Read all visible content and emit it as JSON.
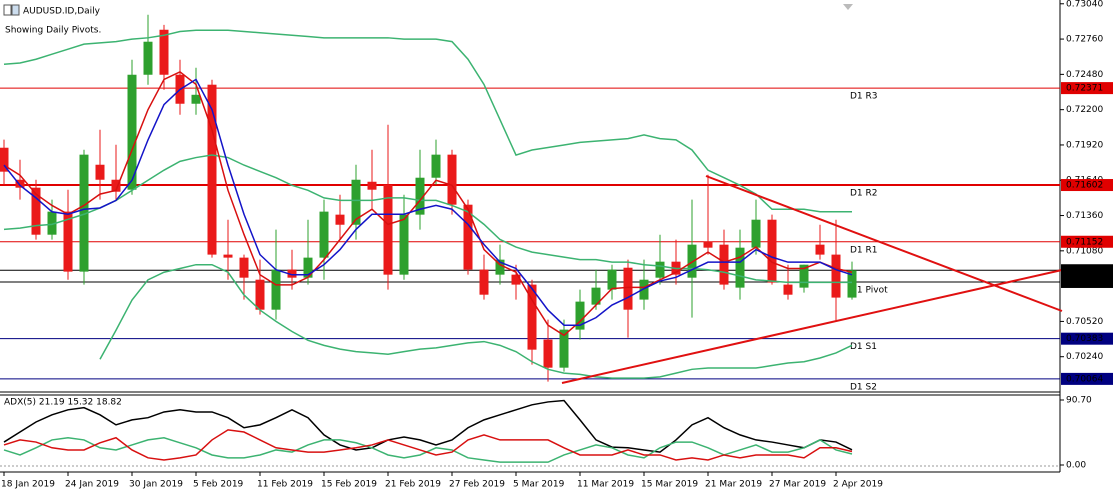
{
  "chart_data": [
    {
      "type": "candlestick",
      "title": "AUDUSD.ID,Daily",
      "subtitle": "Showing Daily Pivots.",
      "categories": [
        "18 Jan 2019",
        null,
        null,
        null,
        "24 Jan 2019",
        null,
        null,
        null,
        "30 Jan 2019",
        null,
        null,
        null,
        "5 Feb 2019",
        null,
        null,
        null,
        "11 Feb 2019",
        null,
        null,
        null,
        "15 Feb 2019",
        null,
        null,
        null,
        "21 Feb 2019",
        null,
        null,
        null,
        "27 Feb 2019",
        null,
        null,
        null,
        "5 Mar 2019",
        null,
        null,
        null,
        "11 Mar 2019",
        null,
        null,
        null,
        "15 Mar 2019",
        null,
        null,
        null,
        "21 Mar 2019",
        null,
        null,
        null,
        "27 Mar 2019",
        null,
        null,
        null,
        "2 Apr 2019",
        null
      ],
      "open": [
        0.71898,
        0.71644,
        0.71581,
        0.71208,
        0.71391,
        0.70915,
        0.71763,
        0.71644,
        0.71565,
        0.72477,
        0.72834,
        0.72477,
        0.72247,
        0.72398,
        0.7105,
        0.71026,
        0.70851,
        0.70613,
        0.70931,
        0.70867,
        0.71026,
        0.71367,
        0.71287,
        0.71628,
        0.71605,
        0.70891,
        0.71367,
        0.7166,
        0.71843,
        0.71446,
        0.70931,
        0.70891,
        0.70891,
        0.70812,
        0.70376,
        0.70153,
        0.70455,
        0.70653,
        0.70772,
        0.70946,
        0.70693,
        0.70867,
        0.70994,
        0.70867,
        0.71153,
        0.71129,
        0.70788,
        0.71105,
        0.71327,
        0.70812,
        0.70788,
        0.71129,
        0.7105,
        0.70709
      ],
      "high": [
        0.71962,
        0.71803,
        0.71644,
        0.71486,
        0.71565,
        0.71882,
        0.72041,
        0.71922,
        0.72596,
        0.72953,
        0.72873,
        0.72596,
        0.72532,
        0.72437,
        0.71327,
        0.7105,
        0.7101,
        0.71248,
        0.71089,
        0.71327,
        0.71486,
        0.71525,
        0.71763,
        0.71882,
        0.7208,
        0.71525,
        0.71882,
        0.71962,
        0.71882,
        0.71486,
        0.7105,
        0.71129,
        0.7097,
        0.70851,
        0.70534,
        0.70534,
        0.70772,
        0.70931,
        0.7097,
        0.7101,
        0.7101,
        0.71208,
        0.71169,
        0.71486,
        0.71684,
        0.71248,
        0.71248,
        0.71486,
        0.71367,
        0.7097,
        0.7097,
        0.71287,
        0.71327,
        0.70994
      ],
      "low": [
        0.71605,
        0.71486,
        0.71169,
        0.71169,
        0.70851,
        0.70812,
        0.71486,
        0.71486,
        0.71525,
        0.72398,
        0.72358,
        0.7216,
        0.7216,
        0.71026,
        0.70851,
        0.70693,
        0.70574,
        0.70534,
        0.70772,
        0.70812,
        0.70851,
        0.71169,
        0.71169,
        0.71406,
        0.70772,
        0.70851,
        0.71248,
        0.71605,
        0.71367,
        0.70891,
        0.70693,
        0.70812,
        0.70693,
        0.70177,
        0.70042,
        0.70122,
        0.70376,
        0.70613,
        0.70693,
        0.70391,
        0.70613,
        0.70812,
        0.70812,
        0.7055,
        0.7105,
        0.70772,
        0.70693,
        0.7105,
        0.70812,
        0.70693,
        0.70748,
        0.7101,
        0.70518,
        0.70693
      ],
      "close": [
        0.71708,
        0.71581,
        0.71208,
        0.71391,
        0.70915,
        0.71843,
        0.71644,
        0.71549,
        0.72477,
        0.72739,
        0.72477,
        0.72247,
        0.72318,
        0.7105,
        0.71026,
        0.70867,
        0.70613,
        0.70931,
        0.70867,
        0.71026,
        0.71391,
        0.71287,
        0.71644,
        0.71565,
        0.70891,
        0.71367,
        0.7166,
        0.71843,
        0.71446,
        0.70931,
        0.70732,
        0.7101,
        0.70812,
        0.70296,
        0.70153,
        0.70455,
        0.70677,
        0.70788,
        0.70931,
        0.70613,
        0.70851,
        0.70994,
        0.70891,
        0.71129,
        0.71105,
        0.70812,
        0.71105,
        0.71327,
        0.70828,
        0.70732,
        0.7097,
        0.7105,
        0.70709,
        0.70926
      ],
      "up_color": "#2ea02e",
      "down_color": "#ea1a1a",
      "series": [
        {
          "color": "#3cb371",
          "values": [
            0.7256,
            0.7257,
            0.726,
            0.7264,
            0.7268,
            0.7272,
            0.7273,
            0.7274,
            0.7276,
            0.7277,
            0.7279,
            0.7282,
            0.7283,
            0.7283,
            0.7283,
            0.7282,
            0.7281,
            0.728,
            0.7279,
            0.7278,
            0.7277,
            0.7277,
            0.7277,
            0.7277,
            0.7277,
            0.7276,
            0.7276,
            0.7276,
            0.7274,
            0.726,
            0.724,
            0.7212,
            0.7184,
            0.7188,
            0.719,
            0.7192,
            0.7194,
            0.7195,
            0.7196,
            0.7197,
            0.72,
            0.7197,
            0.7196,
            0.7188,
            0.7172,
            0.7166,
            0.716,
            0.7153,
            0.7141,
            0.7141,
            0.7141,
            0.7139,
            0.7139,
            0.7139
          ]
        },
        {
          "color": "#3cb371",
          "values": [
            0.7125,
            0.7126,
            0.7128,
            0.7129,
            0.7133,
            0.7137,
            0.7142,
            0.7148,
            0.7156,
            0.7164,
            0.7172,
            0.7179,
            0.7182,
            0.7184,
            0.7182,
            0.7176,
            0.7171,
            0.7166,
            0.716,
            0.7156,
            0.715,
            0.7148,
            0.7148,
            0.7148,
            0.715,
            0.715,
            0.7148,
            0.7148,
            0.7144,
            0.7139,
            0.7129,
            0.7117,
            0.7111,
            0.7107,
            0.7105,
            0.7103,
            0.7101,
            0.7101,
            0.7099,
            0.7099,
            0.7097,
            0.7096,
            0.7094,
            0.7094,
            0.7093,
            0.7091,
            0.7088,
            0.7085,
            0.7084,
            0.7083,
            0.7083,
            0.7083,
            0.7083,
            0.7083
          ]
        },
        {
          "color": "#3cb371",
          "values": [
            null,
            null,
            null,
            null,
            null,
            null,
            0.7022,
            0.7045,
            0.7069,
            0.7085,
            0.7091,
            0.7094,
            0.7097,
            0.7097,
            0.7091,
            0.7073,
            0.7061,
            0.7052,
            0.7044,
            0.7037,
            0.7033,
            0.703,
            0.7028,
            0.7027,
            0.7026,
            0.7028,
            0.703,
            0.7031,
            0.7033,
            0.7035,
            0.7036,
            0.7033,
            0.7028,
            0.702,
            0.7014,
            0.7011,
            0.701,
            0.7008,
            0.7007,
            0.7007,
            0.7007,
            0.7008,
            0.7011,
            0.7014,
            0.7015,
            0.7015,
            0.7015,
            0.7015,
            0.7017,
            0.7019,
            0.702,
            0.7023,
            0.7027,
            0.7033
          ]
        },
        {
          "color": "#d81010",
          "values": [
            0.7176,
            0.7168,
            0.7153,
            0.7144,
            0.7137,
            0.7144,
            0.7153,
            0.7156,
            0.7188,
            0.722,
            0.7244,
            0.725,
            0.724,
            0.7204,
            0.7156,
            0.7121,
            0.7089,
            0.7081,
            0.7081,
            0.7087,
            0.7101,
            0.7117,
            0.7133,
            0.7141,
            0.7129,
            0.7133,
            0.7148,
            0.7164,
            0.716,
            0.7141,
            0.7109,
            0.7097,
            0.7091,
            0.7069,
            0.7049,
            0.7041,
            0.7052,
            0.7065,
            0.7078,
            0.7079,
            0.7079,
            0.7085,
            0.7091,
            0.7099,
            0.7107,
            0.7099,
            0.7103,
            0.7111,
            0.7099,
            0.7094,
            0.7094,
            0.7099,
            0.7094,
            0.7091
          ]
        },
        {
          "color": "#1414c8",
          "values": [
            0.7176,
            0.716,
            0.715,
            0.7139,
            0.7137,
            0.7141,
            0.7142,
            0.7148,
            0.7164,
            0.7196,
            0.7224,
            0.7236,
            0.7244,
            0.722,
            0.7176,
            0.7137,
            0.7105,
            0.7093,
            0.7089,
            0.7089,
            0.7097,
            0.7109,
            0.7125,
            0.7137,
            0.7137,
            0.7137,
            0.7141,
            0.7144,
            0.7141,
            0.7129,
            0.7113,
            0.7099,
            0.7094,
            0.7078,
            0.7061,
            0.7049,
            0.7049,
            0.7055,
            0.7065,
            0.7071,
            0.7078,
            0.7084,
            0.7087,
            0.7093,
            0.7099,
            0.7099,
            0.7099,
            0.7109,
            0.7103,
            0.7099,
            0.7099,
            0.7099,
            0.7093,
            0.7089
          ]
        }
      ],
      "levels": [
        {
          "label": "D1 R3",
          "value": 0.72371,
          "color": "#e00000",
          "line_width": 1
        },
        {
          "label": "D1 R2",
          "value": 0.71602,
          "color": "#e00000",
          "line_width": 2
        },
        {
          "label": "D1 R1",
          "value": 0.71152,
          "color": "#e00000",
          "line_width": 1
        },
        {
          "label": "D1 Pivot",
          "value": 0.70833,
          "color": "#000000",
          "line_width": 1
        },
        {
          "label": "D1 S1",
          "value": 0.70383,
          "color": "#000080",
          "line_width": 1
        },
        {
          "label": "D1 S2",
          "value": 0.70064,
          "color": "#000080",
          "line_width": 1
        }
      ],
      "last_price": 0.70926,
      "ylim": [
        0.6996,
        0.7307
      ],
      "yticks": [
        {
          "value": 0.7304,
          "label": "0.73040"
        },
        {
          "value": 0.7276,
          "label": "0.72760"
        },
        {
          "value": 0.7248,
          "label": "0.72480"
        },
        {
          "value": 0.722,
          "label": "0.72200"
        },
        {
          "value": 0.7192,
          "label": "0.71920"
        },
        {
          "value": 0.7164,
          "label": "0.71640"
        },
        {
          "value": 0.7136,
          "label": "0.71360"
        },
        {
          "value": 0.7108,
          "label": "0.71080"
        },
        {
          "value": 0.7052,
          "label": "0.70520"
        },
        {
          "value": 0.7024,
          "label": "0.70240"
        }
      ]
    },
    {
      "type": "line",
      "title": "ADX(5) 21.19 15.32 18.82",
      "series": [
        {
          "color": "#000000",
          "values": [
            32,
            46,
            60,
            70,
            77,
            80,
            70,
            56,
            63,
            66,
            74,
            77,
            74,
            74,
            66,
            52,
            56,
            66,
            77,
            66,
            42,
            28,
            21,
            24,
            35,
            39,
            35,
            28,
            35,
            52,
            63,
            70,
            77,
            84,
            88,
            90,
            63,
            35,
            25,
            24,
            21,
            18,
            35,
            56,
            66,
            52,
            42,
            35,
            32,
            28,
            24,
            35,
            32,
            21.19
          ]
        },
        {
          "color": "#3cb371",
          "values": [
            21,
            14,
            24,
            35,
            38,
            35,
            24,
            21,
            28,
            35,
            38,
            31,
            24,
            14,
            10,
            10,
            14,
            21,
            18,
            28,
            35,
            35,
            31,
            24,
            14,
            10,
            14,
            24,
            21,
            10,
            7,
            4,
            4,
            4,
            4,
            14,
            21,
            28,
            24,
            14,
            10,
            24,
            32,
            32,
            24,
            14,
            21,
            28,
            18,
            18,
            24,
            35,
            21,
            15.32
          ]
        },
        {
          "color": "#d81010",
          "values": [
            28,
            35,
            32,
            24,
            21,
            21,
            31,
            38,
            21,
            10,
            7,
            10,
            14,
            35,
            49,
            46,
            35,
            24,
            21,
            18,
            18,
            21,
            24,
            28,
            35,
            28,
            21,
            14,
            18,
            35,
            42,
            35,
            35,
            35,
            35,
            24,
            14,
            14,
            14,
            21,
            14,
            14,
            7,
            10,
            7,
            14,
            10,
            14,
            14,
            14,
            10,
            24,
            24,
            18.82
          ]
        }
      ],
      "ylim": [
        0,
        90.7
      ],
      "yticks": [
        {
          "value": 90.7,
          "label": "90.70"
        },
        {
          "value": 0,
          "label": "0.00"
        }
      ]
    }
  ]
}
